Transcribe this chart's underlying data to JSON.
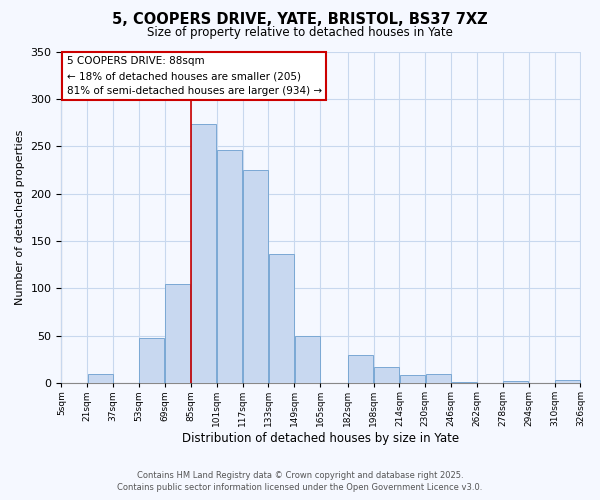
{
  "title": "5, COOPERS DRIVE, YATE, BRISTOL, BS37 7XZ",
  "subtitle": "Size of property relative to detached houses in Yate",
  "xlabel": "Distribution of detached houses by size in Yate",
  "ylabel": "Number of detached properties",
  "bar_color": "#c8d8f0",
  "bar_edge_color": "#7aa8d4",
  "background_color": "#f5f8ff",
  "grid_color": "#c8d8ee",
  "annotation_box_color": "#ffffff",
  "annotation_box_edge": "#cc0000",
  "vline_color": "#cc0000",
  "vline_x": 85,
  "annotation_title": "5 COOPERS DRIVE: 88sqm",
  "annotation_line1": "← 18% of detached houses are smaller (205)",
  "annotation_line2": "81% of semi-detached houses are larger (934) →",
  "footer_line1": "Contains HM Land Registry data © Crown copyright and database right 2025.",
  "footer_line2": "Contains public sector information licensed under the Open Government Licence v3.0.",
  "bin_edges": [
    5,
    21,
    37,
    53,
    69,
    85,
    101,
    117,
    133,
    149,
    165,
    182,
    198,
    214,
    230,
    246,
    262,
    278,
    294,
    310,
    326
  ],
  "bin_heights": [
    0,
    10,
    0,
    48,
    105,
    274,
    246,
    225,
    136,
    50,
    0,
    30,
    17,
    9,
    10,
    1,
    0,
    2,
    0,
    3
  ],
  "ylim": [
    0,
    350
  ],
  "yticks": [
    0,
    50,
    100,
    150,
    200,
    250,
    300,
    350
  ],
  "tick_labels": [
    "5sqm",
    "21sqm",
    "37sqm",
    "53sqm",
    "69sqm",
    "85sqm",
    "101sqm",
    "117sqm",
    "133sqm",
    "149sqm",
    "165sqm",
    "182sqm",
    "198sqm",
    "214sqm",
    "230sqm",
    "246sqm",
    "262sqm",
    "278sqm",
    "294sqm",
    "310sqm",
    "326sqm"
  ]
}
